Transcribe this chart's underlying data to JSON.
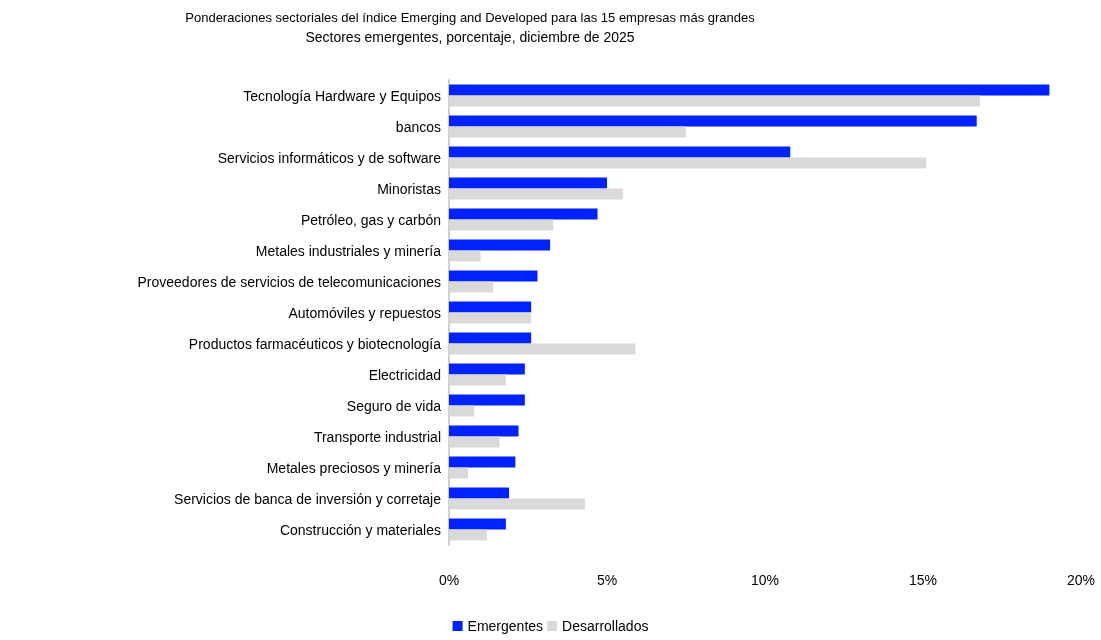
{
  "chart_data": {
    "type": "bar",
    "orientation": "horizontal",
    "title": "Ponderaciones sectoriales del índice Emerging and Developed para las 15 empresas más grandes",
    "subtitle": "Sectores emergentes, porcentaje, diciembre de 2025",
    "categories": [
      "Tecnología Hardware y Equipos",
      "bancos",
      "Servicios informáticos y de software",
      "Minoristas",
      "Petróleo, gas y carbón",
      "Metales industriales y minería",
      "Proveedores de servicios de telecomunicaciones",
      "Automóviles y repuestos",
      "Productos farmacéuticos y biotecnología",
      "Electricidad",
      "Seguro de vida",
      "Transporte industrial",
      "Metales preciosos y minería",
      "Servicios de banca de inversión y corretaje",
      "Construcción y materiales"
    ],
    "series": [
      {
        "name": "Emergentes",
        "color": "#0022ff",
        "values": [
          19.0,
          16.7,
          10.8,
          5.0,
          4.7,
          3.2,
          2.8,
          2.6,
          2.6,
          2.4,
          2.4,
          2.2,
          2.1,
          1.9,
          1.8
        ]
      },
      {
        "name": "Desarrollados",
        "color": "#d9d9d9",
        "values": [
          16.8,
          7.5,
          15.1,
          5.5,
          3.3,
          1.0,
          1.4,
          2.6,
          5.9,
          1.8,
          0.8,
          1.6,
          0.6,
          4.3,
          1.2
        ]
      }
    ],
    "xlim": [
      0,
      20
    ],
    "xticks": [
      {
        "value": 0,
        "label": "0%"
      },
      {
        "value": 5,
        "label": "5%"
      },
      {
        "value": 10,
        "label": "10%"
      },
      {
        "value": 15,
        "label": "15%"
      },
      {
        "value": 20,
        "label": "20%"
      }
    ],
    "grid": false,
    "legend": "bottom"
  }
}
